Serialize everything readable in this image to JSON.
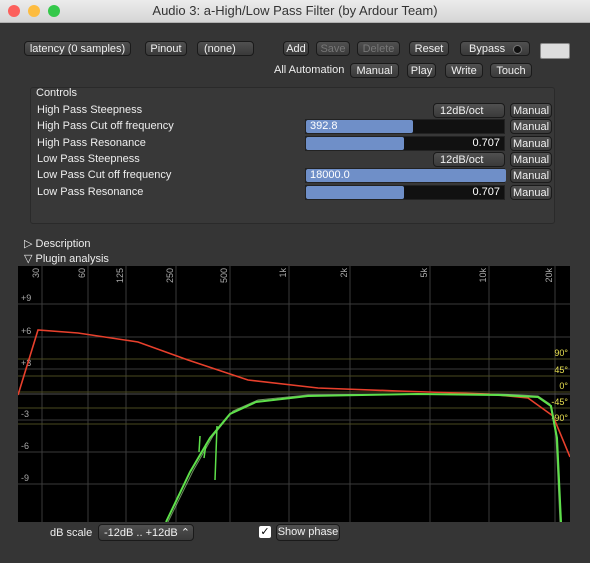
{
  "window": {
    "title": "Audio 3: a-High/Low Pass Filter (by Ardour Team)"
  },
  "toolbar": {
    "latency": "latency (0 samples)",
    "pinout": "Pinout",
    "preset": "(none)",
    "add": "Add",
    "save": "Save",
    "delete": "Delete",
    "reset": "Reset",
    "bypass": "Bypass"
  },
  "automation": {
    "label": "All Automation",
    "modes": [
      "Manual",
      "Play",
      "Write",
      "Touch"
    ]
  },
  "controls": {
    "title": "Controls",
    "rows": [
      {
        "label": "High Pass Steepness",
        "value": "12dB/oct",
        "mode": "Manual"
      },
      {
        "label": "High Pass Cut off frequency",
        "value": "392.8",
        "mode": "Manual"
      },
      {
        "label": "High Pass Resonance",
        "value": "0.707",
        "mode": "Manual"
      },
      {
        "label": "Low Pass Steepness",
        "value": "12dB/oct",
        "mode": "Manual"
      },
      {
        "label": "Low Pass Cut off frequency",
        "value": "18000.0",
        "mode": "Manual"
      },
      {
        "label": "Low Pass Resonance",
        "value": "0.707",
        "mode": "Manual"
      }
    ]
  },
  "sections": {
    "description": "Description",
    "analysis": "Plugin analysis"
  },
  "analysis": {
    "freq_labels": [
      "30",
      "60",
      "125",
      "250",
      "500",
      "1k",
      "2k",
      "5k",
      "10k",
      "20k"
    ],
    "db_labels": [
      "+9",
      "+6",
      "+3",
      "-3",
      "-6",
      "-9"
    ],
    "phase_labels": [
      "90°",
      "45°",
      "0°",
      "-45°",
      "-90°"
    ]
  },
  "footer": {
    "scale_label": "dB scale",
    "scale": "-12dB .. +12dB",
    "show_phase": "Show phase"
  }
}
